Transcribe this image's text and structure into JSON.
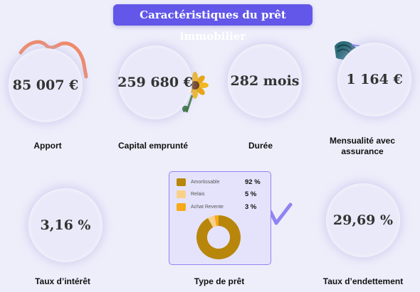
{
  "title": "Caractéristiques du prêt immobilier",
  "cards": [
    {
      "value": "85 007 €",
      "label": "Apport"
    },
    {
      "value": "259 680 €",
      "label": "Capital emprunté"
    },
    {
      "value": "282 mois",
      "label": "Durée"
    },
    {
      "value": "1 164 €",
      "label": "Mensualité avec assurance"
    },
    {
      "value": "3,16 %",
      "label": "Taux d’intérêt"
    },
    {
      "label": "Type de prêt"
    },
    {
      "value": "29,69 %",
      "label": "Taux d’endettement"
    }
  ],
  "chart_data": {
    "type": "pie",
    "categories": [
      "Amortissable",
      "Relais",
      "Achat Revente"
    ],
    "values": [
      92,
      5,
      3
    ],
    "value_labels": [
      "92 %",
      "5 %",
      "3 %"
    ],
    "colors": [
      "#b8860b",
      "#f9d08a",
      "#f6a91a"
    ]
  }
}
